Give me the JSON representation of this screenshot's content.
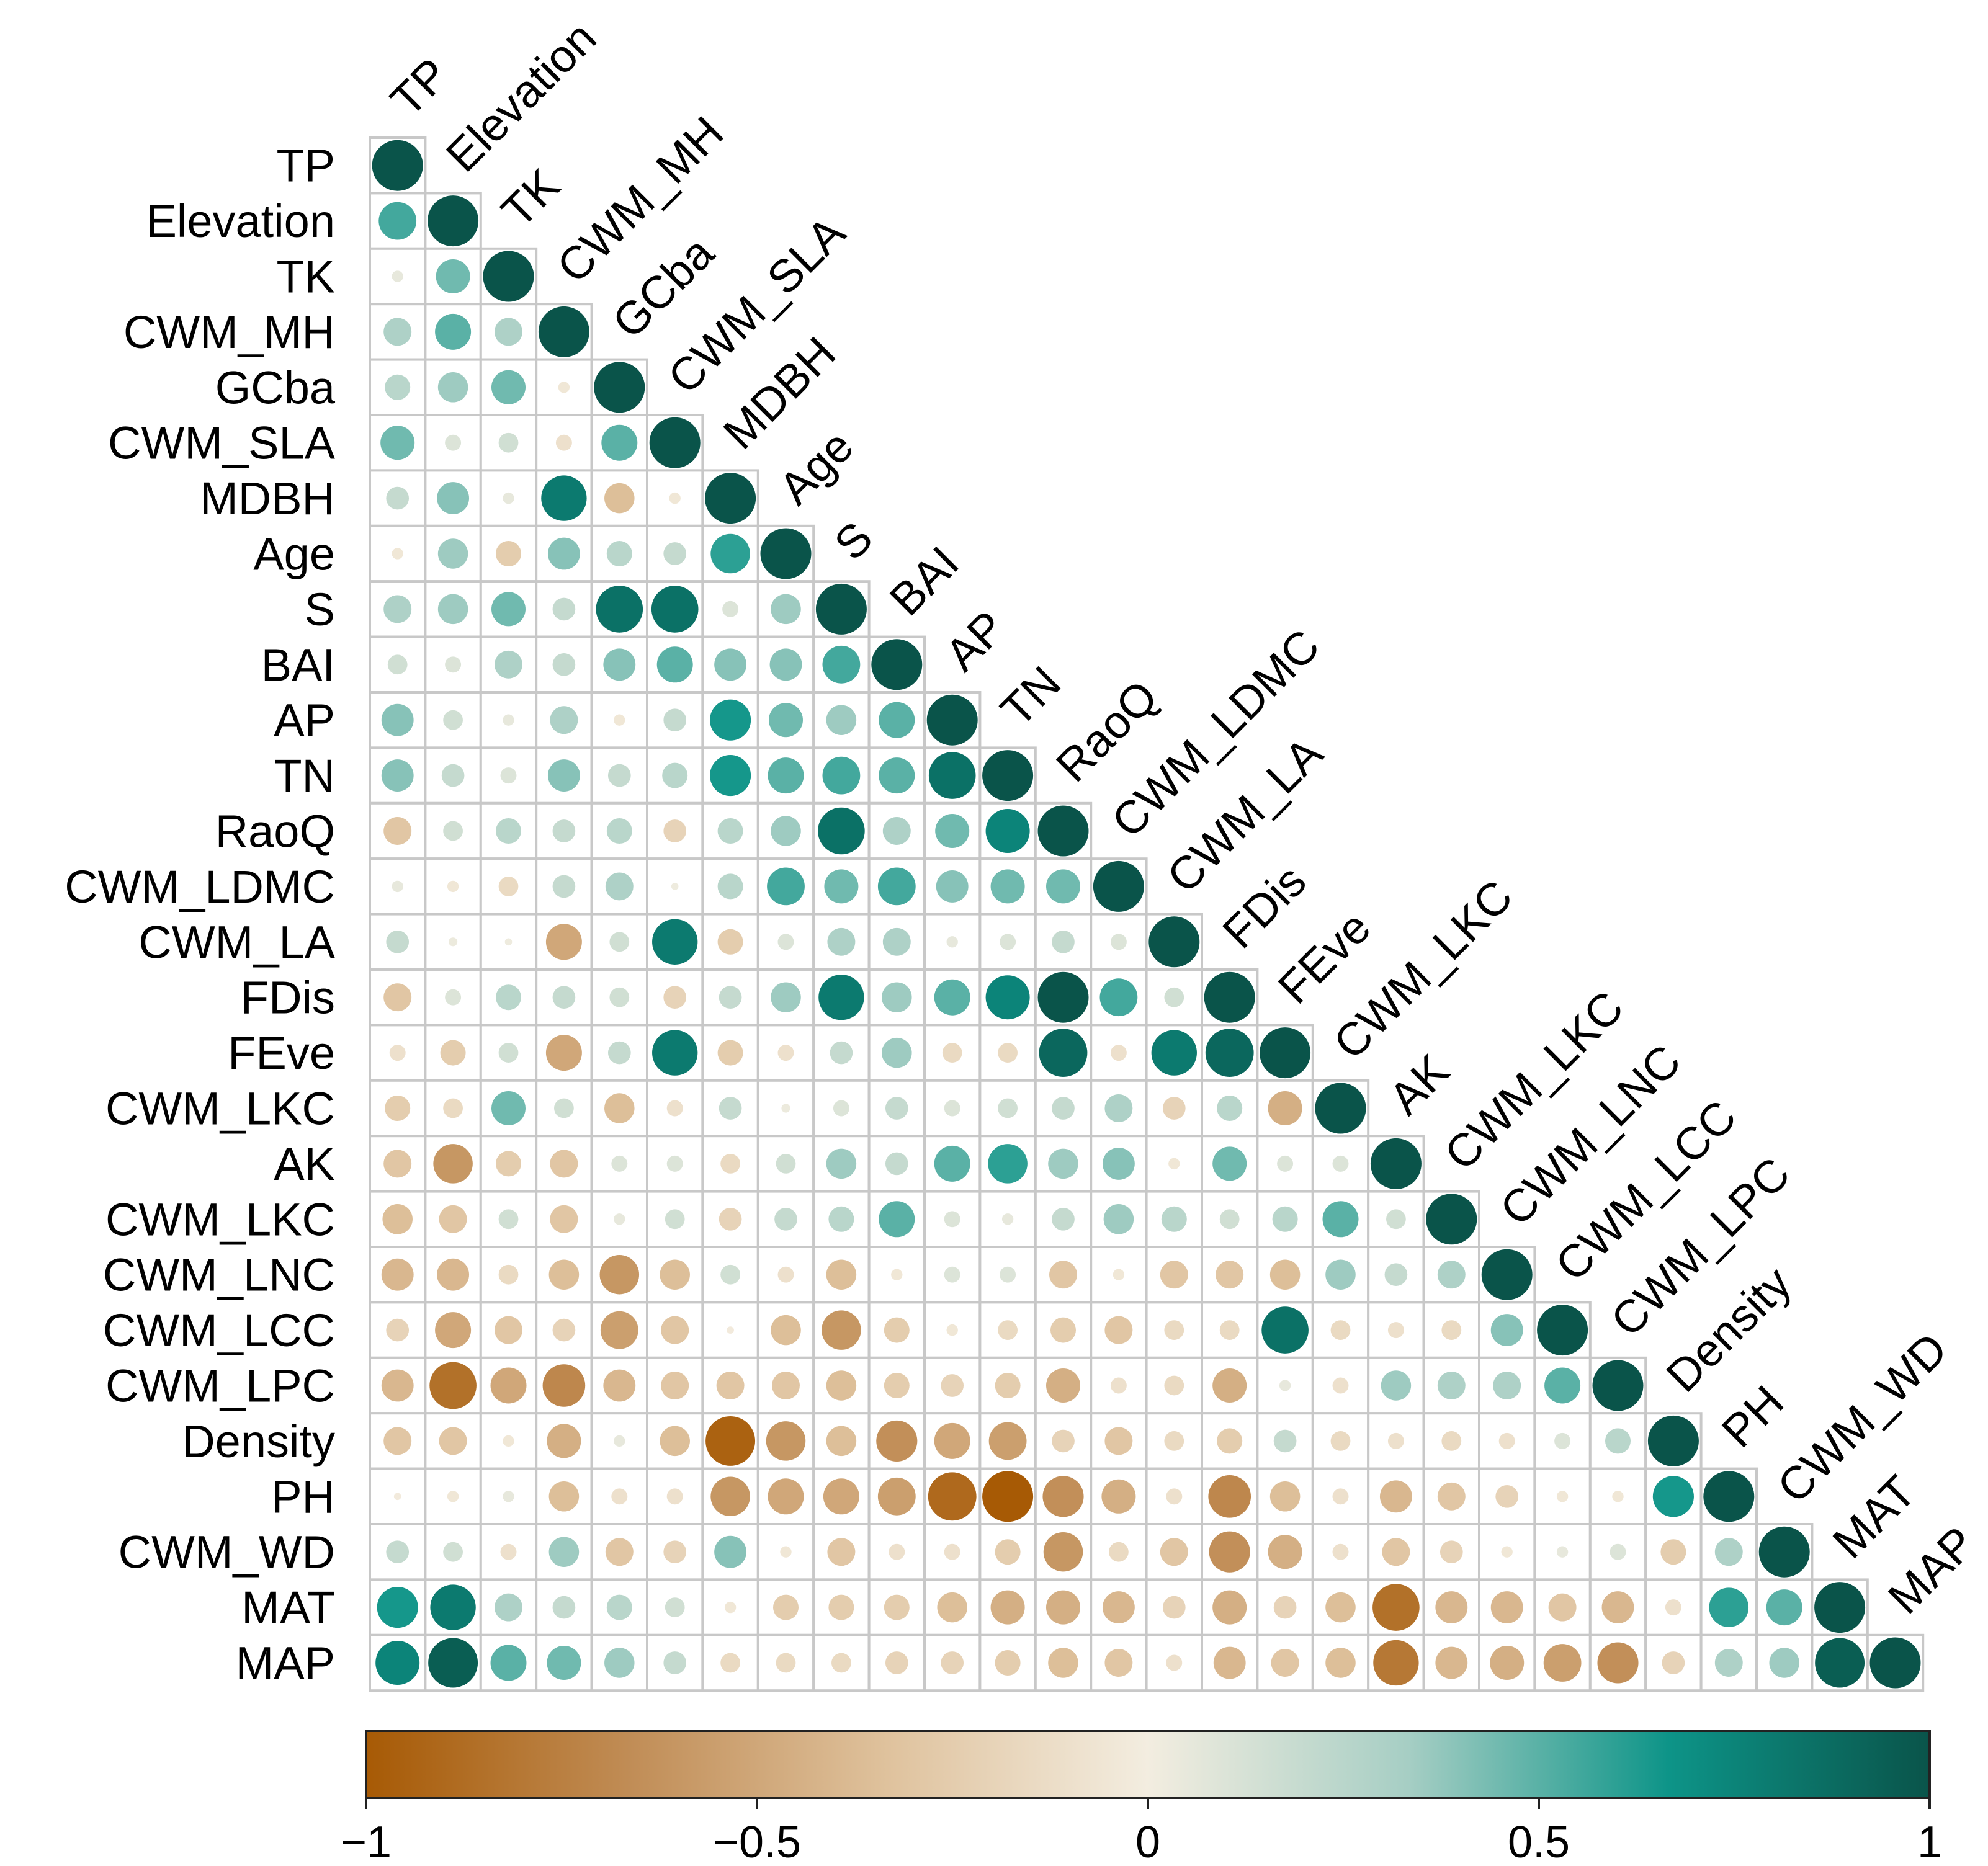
{
  "chart_data": {
    "type": "heatmap",
    "subtype": "correlation-lower-triangle",
    "variables": [
      "TP",
      "Elevation",
      "TK",
      "CWM_MH",
      "GCba",
      "CWM_SLA",
      "MDBH",
      "Age",
      "S",
      "BAI",
      "AP",
      "TN",
      "RaoQ",
      "CWM_LDMC",
      "CWM_LA",
      "FDis",
      "FEve",
      "CWM_LKC",
      "AK",
      "CWM_LKC",
      "CWM_LNC",
      "CWM_LCC",
      "CWM_LPC",
      "Density",
      "PH",
      "CWM_WD",
      "MAT",
      "MAP"
    ],
    "matrix": [
      [
        1
      ],
      [
        0.55,
        1
      ],
      [
        0.05,
        0.45,
        1
      ],
      [
        0.3,
        0.5,
        0.3,
        1
      ],
      [
        0.25,
        0.35,
        0.45,
        -0.05,
        1
      ],
      [
        0.45,
        0.1,
        0.15,
        -0.1,
        0.5,
        1
      ],
      [
        0.2,
        0.4,
        0.05,
        0.8,
        -0.35,
        -0.05,
        1
      ],
      [
        -0.05,
        0.35,
        -0.25,
        0.4,
        0.25,
        0.2,
        0.6,
        1
      ],
      [
        0.3,
        0.35,
        0.45,
        0.2,
        0.85,
        0.85,
        0.1,
        0.35,
        1
      ],
      [
        0.15,
        0.1,
        0.3,
        0.2,
        0.4,
        0.5,
        0.4,
        0.4,
        0.55,
        1
      ],
      [
        0.4,
        0.15,
        0.05,
        0.3,
        -0.05,
        0.2,
        0.65,
        0.45,
        0.35,
        0.5,
        1
      ],
      [
        0.4,
        0.2,
        0.1,
        0.4,
        0.2,
        0.25,
        0.65,
        0.5,
        0.55,
        0.5,
        0.85,
        1
      ],
      [
        -0.3,
        0.15,
        0.25,
        0.2,
        0.25,
        -0.2,
        0.25,
        0.35,
        0.85,
        0.3,
        0.45,
        0.75,
        1
      ],
      [
        0.05,
        -0.05,
        -0.15,
        0.2,
        0.3,
        0.02,
        0.25,
        0.55,
        0.45,
        0.55,
        0.4,
        0.45,
        0.45,
        1
      ],
      [
        0.2,
        0.03,
        0.02,
        -0.5,
        0.15,
        0.8,
        -0.25,
        0.1,
        0.3,
        0.3,
        0.05,
        0.1,
        0.2,
        0.1,
        1
      ],
      [
        -0.3,
        0.1,
        0.25,
        0.2,
        0.15,
        -0.2,
        0.2,
        0.35,
        0.8,
        0.35,
        0.5,
        0.75,
        1.0,
        0.55,
        0.15,
        1
      ],
      [
        -0.1,
        -0.25,
        0.15,
        -0.5,
        0.2,
        0.8,
        -0.25,
        -0.1,
        0.2,
        0.35,
        -0.15,
        -0.15,
        0.9,
        -0.1,
        0.8,
        0.9,
        1
      ],
      [
        -0.25,
        -0.15,
        0.45,
        0.15,
        -0.35,
        -0.1,
        0.2,
        0.03,
        0.1,
        0.2,
        0.1,
        0.15,
        0.2,
        0.3,
        -0.2,
        0.25,
        -0.45,
        1
      ],
      [
        -0.3,
        -0.6,
        -0.25,
        -0.3,
        0.1,
        0.1,
        -0.15,
        0.15,
        0.35,
        0.2,
        0.5,
        0.6,
        0.35,
        0.4,
        -0.05,
        0.45,
        0.1,
        0.1,
        1
      ],
      [
        -0.35,
        -0.3,
        0.15,
        -0.3,
        0.05,
        0.15,
        -0.2,
        0.2,
        0.25,
        0.5,
        0.1,
        0.05,
        0.2,
        0.35,
        0.25,
        0.15,
        0.25,
        0.5,
        0.15,
        1
      ],
      [
        -0.4,
        -0.4,
        -0.15,
        -0.35,
        -0.6,
        -0.35,
        0.15,
        -0.1,
        -0.35,
        -0.05,
        0.1,
        0.1,
        -0.3,
        -0.05,
        -0.3,
        -0.3,
        -0.35,
        0.35,
        0.2,
        0.3,
        1
      ],
      [
        -0.2,
        -0.5,
        -0.3,
        -0.2,
        -0.55,
        -0.3,
        -0.02,
        -0.35,
        -0.6,
        -0.25,
        -0.05,
        -0.15,
        -0.25,
        -0.3,
        -0.15,
        -0.15,
        0.85,
        -0.15,
        -0.1,
        -0.15,
        0.4,
        1
      ],
      [
        -0.4,
        -0.85,
        -0.5,
        -0.7,
        -0.4,
        -0.3,
        -0.3,
        -0.3,
        -0.35,
        -0.25,
        -0.2,
        -0.25,
        -0.45,
        -0.1,
        -0.15,
        -0.45,
        0.05,
        -0.1,
        0.35,
        0.3,
        0.3,
        0.5,
        1
      ],
      [
        -0.3,
        -0.3,
        -0.05,
        -0.45,
        0.05,
        -0.35,
        -0.95,
        -0.6,
        -0.35,
        -0.65,
        -0.5,
        -0.55,
        -0.2,
        -0.3,
        -0.15,
        -0.25,
        0.2,
        -0.15,
        -0.1,
        -0.15,
        -0.1,
        0.1,
        0.25,
        1
      ],
      [
        -0.02,
        -0.05,
        0.05,
        -0.35,
        -0.1,
        -0.1,
        -0.6,
        -0.5,
        -0.5,
        -0.55,
        -0.9,
        -1.0,
        -0.65,
        -0.45,
        -0.1,
        -0.7,
        -0.35,
        -0.1,
        -0.4,
        -0.3,
        -0.2,
        -0.05,
        -0.05,
        0.65,
        1
      ],
      [
        0.2,
        0.15,
        -0.1,
        0.35,
        -0.3,
        -0.2,
        0.4,
        -0.05,
        -0.3,
        -0.1,
        -0.1,
        -0.25,
        -0.6,
        -0.15,
        -0.3,
        -0.65,
        -0.45,
        -0.1,
        -0.3,
        -0.2,
        -0.05,
        0.05,
        0.1,
        -0.25,
        0.3,
        1
      ],
      [
        0.65,
        0.8,
        0.3,
        0.2,
        0.25,
        0.15,
        -0.05,
        -0.25,
        -0.25,
        -0.25,
        -0.35,
        -0.45,
        -0.45,
        -0.4,
        -0.2,
        -0.45,
        -0.2,
        -0.35,
        -0.85,
        -0.4,
        -0.4,
        -0.3,
        -0.4,
        -0.1,
        0.6,
        0.5,
        1
      ],
      [
        0.75,
        0.95,
        0.5,
        0.45,
        0.35,
        0.2,
        -0.15,
        -0.15,
        -0.15,
        -0.2,
        -0.2,
        -0.25,
        -0.35,
        -0.3,
        -0.1,
        -0.4,
        -0.3,
        -0.35,
        -0.8,
        -0.4,
        -0.45,
        -0.55,
        -0.65,
        -0.2,
        0.3,
        0.35,
        0.95,
        1
      ]
    ],
    "colorbar": {
      "min": -1,
      "max": 1,
      "ticks": [
        -1,
        -0.5,
        0,
        0.5,
        1
      ],
      "tick_labels": [
        "−1",
        "−0.5",
        "0",
        "0.5",
        "1"
      ],
      "colors": [
        "#a75a05",
        "#c08c55",
        "#dfc29d",
        "#f3ede0",
        "#a6cec4",
        "#0d9488",
        "#0a544a"
      ]
    },
    "title": "",
    "xlabel": "",
    "ylabel": "",
    "legend": "bottom"
  }
}
